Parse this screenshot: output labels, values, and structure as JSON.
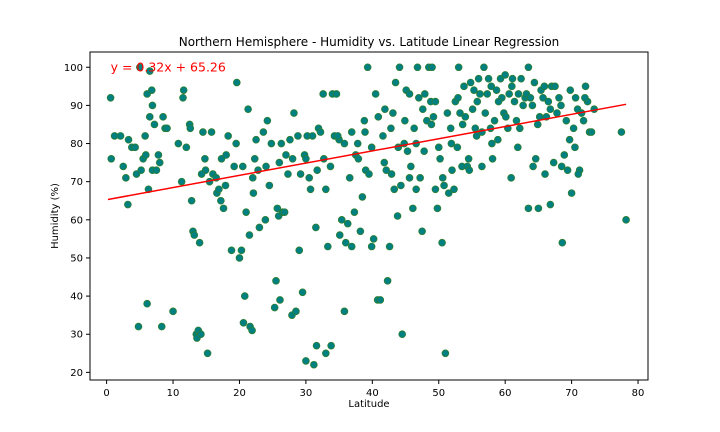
{
  "chart_data": {
    "type": "scatter",
    "title": "Northern Hemisphere - Humidity vs. Latitude Linear Regression",
    "xlabel": "Latitude",
    "ylabel": "Humidity (%)",
    "xlim": [
      -2.5,
      81.5
    ],
    "ylim": [
      18,
      104
    ],
    "xticks": [
      0,
      10,
      20,
      30,
      40,
      50,
      60,
      70,
      80
    ],
    "yticks": [
      20,
      30,
      40,
      50,
      60,
      70,
      80,
      90,
      100
    ],
    "grid": false,
    "annotation": {
      "text": "y = 0.32x + 65.26",
      "x": 0.6,
      "y": 100,
      "color": "#ff0000"
    },
    "regression": {
      "slope": 0.32,
      "intercept": 65.26,
      "x_range": [
        0.2,
        78.2
      ],
      "color": "#ff0000"
    },
    "marker_fill": "#008080",
    "marker_edge": "#2e7d32",
    "points": [
      [
        0.6,
        92
      ],
      [
        0.7,
        76
      ],
      [
        1.2,
        82
      ],
      [
        2.1,
        82
      ],
      [
        2.5,
        74
      ],
      [
        2.9,
        71
      ],
      [
        3.2,
        64
      ],
      [
        3.3,
        81
      ],
      [
        3.8,
        79
      ],
      [
        4.3,
        79
      ],
      [
        4.5,
        72
      ],
      [
        5.0,
        100
      ],
      [
        5.2,
        73
      ],
      [
        5.5,
        76
      ],
      [
        5.8,
        82
      ],
      [
        5.9,
        77
      ],
      [
        6.1,
        93
      ],
      [
        6.1,
        38
      ],
      [
        6.3,
        68
      ],
      [
        6.5,
        87
      ],
      [
        6.8,
        94
      ],
      [
        6.9,
        90
      ],
      [
        6.9,
        73
      ],
      [
        7.2,
        85
      ],
      [
        7.5,
        73
      ],
      [
        7.8,
        77
      ],
      [
        8.0,
        75
      ],
      [
        8.3,
        32
      ],
      [
        8.5,
        87
      ],
      [
        8.8,
        84
      ],
      [
        9.1,
        84
      ],
      [
        4.8,
        32
      ],
      [
        6.5,
        99
      ],
      [
        10.0,
        36
      ],
      [
        10.8,
        80
      ],
      [
        11.3,
        70
      ],
      [
        11.6,
        94
      ],
      [
        11.5,
        92
      ],
      [
        12.0,
        79
      ],
      [
        12.5,
        85
      ],
      [
        12.6,
        84
      ],
      [
        12.8,
        65
      ],
      [
        13.0,
        57
      ],
      [
        13.2,
        56
      ],
      [
        13.5,
        30
      ],
      [
        13.6,
        29
      ],
      [
        13.8,
        31
      ],
      [
        14.0,
        54
      ],
      [
        14.2,
        30
      ],
      [
        14.5,
        83
      ],
      [
        14.8,
        76
      ],
      [
        14.9,
        73
      ],
      [
        15.2,
        25
      ],
      [
        15.8,
        83
      ],
      [
        16.0,
        72
      ],
      [
        16.6,
        67
      ],
      [
        16.9,
        68
      ],
      [
        17.3,
        76
      ],
      [
        17.2,
        65
      ],
      [
        17.6,
        63
      ],
      [
        17.9,
        69
      ],
      [
        18.3,
        82
      ],
      [
        18.8,
        52
      ],
      [
        19.2,
        74
      ],
      [
        19.6,
        96
      ],
      [
        20.0,
        50
      ],
      [
        20.3,
        52
      ],
      [
        20.6,
        33
      ],
      [
        20.8,
        40
      ],
      [
        21.0,
        62
      ],
      [
        21.3,
        89
      ],
      [
        21.6,
        32
      ],
      [
        21.5,
        56
      ],
      [
        21.9,
        31
      ],
      [
        22.1,
        67
      ],
      [
        22.3,
        76
      ],
      [
        22.5,
        81
      ],
      [
        22.8,
        73
      ],
      [
        23.0,
        58
      ],
      [
        23.6,
        83
      ],
      [
        23.9,
        60
      ],
      [
        24.2,
        86
      ],
      [
        24.5,
        69
      ],
      [
        24.8,
        80
      ],
      [
        25.3,
        37
      ],
      [
        25.5,
        44
      ],
      [
        25.7,
        63
      ],
      [
        25.9,
        61
      ],
      [
        26.1,
        39
      ],
      [
        26.3,
        80
      ],
      [
        26.5,
        62
      ],
      [
        26.8,
        62
      ],
      [
        27.3,
        72
      ],
      [
        27.6,
        81
      ],
      [
        27.9,
        35
      ],
      [
        28.2,
        88
      ],
      [
        28.5,
        36
      ],
      [
        28.8,
        82
      ],
      [
        29.0,
        52
      ],
      [
        29.5,
        41
      ],
      [
        29.8,
        77
      ],
      [
        30.0,
        23
      ],
      [
        30.0,
        76
      ],
      [
        30.2,
        82
      ],
      [
        30.7,
        68
      ],
      [
        31.0,
        82
      ],
      [
        31.2,
        22
      ],
      [
        31.5,
        58
      ],
      [
        31.6,
        27
      ],
      [
        31.9,
        84
      ],
      [
        32.2,
        83
      ],
      [
        32.6,
        93
      ],
      [
        33.0,
        68
      ],
      [
        33.0,
        25
      ],
      [
        33.3,
        53
      ],
      [
        33.8,
        27
      ],
      [
        34.0,
        93
      ],
      [
        34.3,
        82
      ],
      [
        34.6,
        93
      ],
      [
        35.0,
        81
      ],
      [
        35.1,
        56
      ],
      [
        35.4,
        60
      ],
      [
        35.8,
        36
      ],
      [
        36.0,
        54
      ],
      [
        36.3,
        59
      ],
      [
        36.6,
        71
      ],
      [
        36.9,
        53
      ],
      [
        37.3,
        62
      ],
      [
        37.5,
        77
      ],
      [
        37.9,
        76
      ],
      [
        38.2,
        57
      ],
      [
        38.5,
        66
      ],
      [
        38.8,
        86
      ],
      [
        39.0,
        73
      ],
      [
        39.3,
        100
      ],
      [
        39.5,
        72
      ],
      [
        39.9,
        53
      ],
      [
        40.2,
        55
      ],
      [
        40.5,
        93
      ],
      [
        40.8,
        39
      ],
      [
        41.2,
        39
      ],
      [
        41.6,
        82
      ],
      [
        41.8,
        75
      ],
      [
        42.1,
        73
      ],
      [
        42.3,
        44
      ],
      [
        42.6,
        53
      ],
      [
        42.9,
        72
      ],
      [
        43.1,
        88
      ],
      [
        43.3,
        68
      ],
      [
        43.5,
        96
      ],
      [
        43.8,
        61
      ],
      [
        44.1,
        100
      ],
      [
        44.3,
        69
      ],
      [
        44.5,
        30
      ],
      [
        44.8,
        80
      ],
      [
        45.1,
        94
      ],
      [
        45.3,
        78
      ],
      [
        45.6,
        93
      ],
      [
        45.8,
        74
      ],
      [
        46.1,
        63
      ],
      [
        46.3,
        84
      ],
      [
        46.6,
        68
      ],
      [
        46.8,
        100
      ],
      [
        47.0,
        92
      ],
      [
        47.2,
        71
      ],
      [
        47.5,
        57
      ],
      [
        47.8,
        78
      ],
      [
        47.9,
        93
      ],
      [
        48.2,
        86
      ],
      [
        48.5,
        100
      ],
      [
        48.8,
        91
      ],
      [
        49.0,
        100
      ],
      [
        49.2,
        87
      ],
      [
        49.5,
        68
      ],
      [
        49.8,
        63
      ],
      [
        50.0,
        79
      ],
      [
        50.2,
        76
      ],
      [
        50.5,
        54
      ],
      [
        50.8,
        69
      ],
      [
        51.0,
        25
      ],
      [
        51.3,
        88
      ],
      [
        51.5,
        67
      ],
      [
        51.8,
        84
      ],
      [
        52.0,
        73
      ],
      [
        52.3,
        68
      ],
      [
        52.5,
        91
      ],
      [
        52.8,
        79
      ],
      [
        53.0,
        100
      ],
      [
        53.2,
        88
      ],
      [
        53.5,
        74
      ],
      [
        53.8,
        95
      ],
      [
        54.0,
        87
      ],
      [
        54.3,
        74
      ],
      [
        54.6,
        73
      ],
      [
        54.8,
        96
      ],
      [
        55.1,
        89
      ],
      [
        55.3,
        94
      ],
      [
        55.7,
        82
      ],
      [
        56.0,
        97
      ],
      [
        56.2,
        93
      ],
      [
        56.5,
        83
      ],
      [
        56.8,
        100
      ],
      [
        57.0,
        88
      ],
      [
        57.3,
        93
      ],
      [
        57.5,
        97
      ],
      [
        57.9,
        95
      ],
      [
        58.1,
        76
      ],
      [
        58.4,
        86
      ],
      [
        58.7,
        94
      ],
      [
        58.9,
        81
      ],
      [
        59.3,
        97
      ],
      [
        59.5,
        92
      ],
      [
        59.8,
        88
      ],
      [
        60.1,
        87
      ],
      [
        60.4,
        84
      ],
      [
        60.6,
        93
      ],
      [
        60.9,
        71
      ],
      [
        61.1,
        97
      ],
      [
        61.4,
        91
      ],
      [
        61.7,
        86
      ],
      [
        61.9,
        79
      ],
      [
        62.2,
        84
      ],
      [
        62.4,
        97
      ],
      [
        62.7,
        90
      ],
      [
        63.0,
        92
      ],
      [
        63.2,
        93
      ],
      [
        63.5,
        100
      ],
      [
        63.8,
        92
      ],
      [
        64.1,
        90
      ],
      [
        64.4,
        96
      ],
      [
        64.6,
        76
      ],
      [
        64.9,
        85
      ],
      [
        65.2,
        87
      ],
      [
        65.4,
        94
      ],
      [
        65.7,
        92
      ],
      [
        65.9,
        95
      ],
      [
        66.2,
        87
      ],
      [
        66.5,
        91
      ],
      [
        66.8,
        89
      ],
      [
        67.0,
        95
      ],
      [
        67.3,
        75
      ],
      [
        67.5,
        95
      ],
      [
        67.8,
        88
      ],
      [
        68.1,
        92
      ],
      [
        68.4,
        90
      ],
      [
        68.6,
        54
      ],
      [
        68.9,
        77
      ],
      [
        69.2,
        86
      ],
      [
        69.4,
        73
      ],
      [
        69.7,
        81
      ],
      [
        70.0,
        67
      ],
      [
        70.3,
        84
      ],
      [
        70.6,
        92
      ],
      [
        70.9,
        89
      ],
      [
        71.2,
        73
      ],
      [
        71.5,
        88
      ],
      [
        71.8,
        86
      ],
      [
        72.1,
        95
      ],
      [
        72.4,
        91
      ],
      [
        72.7,
        83
      ],
      [
        73.0,
        83
      ],
      [
        73.4,
        89
      ],
      [
        77.5,
        83
      ],
      [
        78.2,
        60
      ],
      [
        55.8,
        91
      ],
      [
        57.8,
        84
      ],
      [
        63.5,
        63
      ],
      [
        64.2,
        74
      ],
      [
        65.0,
        63
      ],
      [
        66.0,
        72
      ],
      [
        66.8,
        64
      ],
      [
        68.5,
        74
      ],
      [
        69.8,
        94
      ],
      [
        70.5,
        79
      ],
      [
        71.0,
        72
      ],
      [
        72.0,
        92
      ],
      [
        62.0,
        93
      ],
      [
        61.0,
        95
      ],
      [
        60.0,
        98
      ],
      [
        59.0,
        91
      ],
      [
        58.0,
        80
      ],
      [
        56.5,
        74
      ],
      [
        55.5,
        84
      ],
      [
        54.5,
        76
      ],
      [
        53.6,
        85
      ],
      [
        52.9,
        92
      ],
      [
        51.9,
        80
      ],
      [
        50.6,
        71
      ],
      [
        49.5,
        91
      ],
      [
        48.9,
        85
      ],
      [
        47.6,
        89
      ],
      [
        46.6,
        80
      ],
      [
        45.6,
        71
      ],
      [
        44.9,
        86
      ],
      [
        43.9,
        79
      ],
      [
        42.8,
        84
      ],
      [
        41.9,
        89
      ],
      [
        40.9,
        87
      ],
      [
        39.9,
        79
      ],
      [
        38.9,
        83
      ],
      [
        37.8,
        80
      ],
      [
        36.9,
        83
      ],
      [
        35.8,
        80
      ],
      [
        34.8,
        82
      ],
      [
        33.7,
        74
      ],
      [
        32.7,
        76
      ],
      [
        31.7,
        73
      ],
      [
        30.5,
        71
      ],
      [
        29.2,
        72
      ],
      [
        28.0,
        76
      ],
      [
        27.0,
        77
      ],
      [
        26.0,
        75
      ],
      [
        24.0,
        74
      ],
      [
        22.0,
        71
      ],
      [
        20.5,
        74
      ],
      [
        19.5,
        80
      ],
      [
        18.0,
        77
      ],
      [
        16.5,
        71
      ],
      [
        15.5,
        70
      ],
      [
        14.3,
        72
      ]
    ]
  }
}
